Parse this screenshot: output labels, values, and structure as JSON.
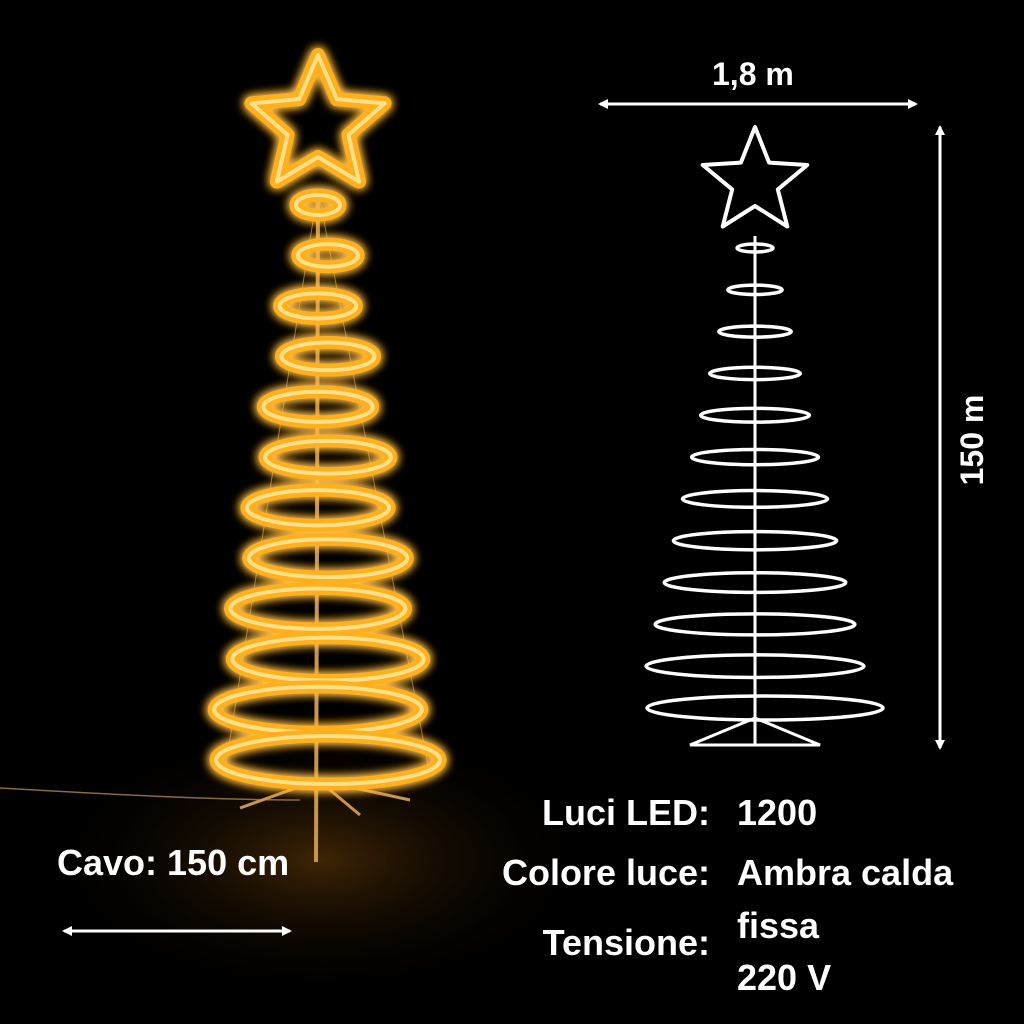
{
  "dimensions": {
    "width_label": "1,8 m",
    "height_label": "150 m"
  },
  "cable": {
    "label": "Cavo: 150 cm"
  },
  "specs": [
    {
      "label": "Luci LED:",
      "value": "1200"
    },
    {
      "label": "Colore luce:",
      "value": "Ambra calda"
    },
    {
      "label": "Tensione:",
      "value": "fissa",
      "value2": "220 V"
    }
  ],
  "colors": {
    "glow": "#ffb01e",
    "glow_core": "#ffe08a",
    "line_art": "#ffffff",
    "background": "#000000"
  },
  "icons": [
    "glowing-spiral-tree-photo",
    "tree-line-drawing",
    "width-arrow",
    "height-arrow",
    "cable-arrow"
  ]
}
